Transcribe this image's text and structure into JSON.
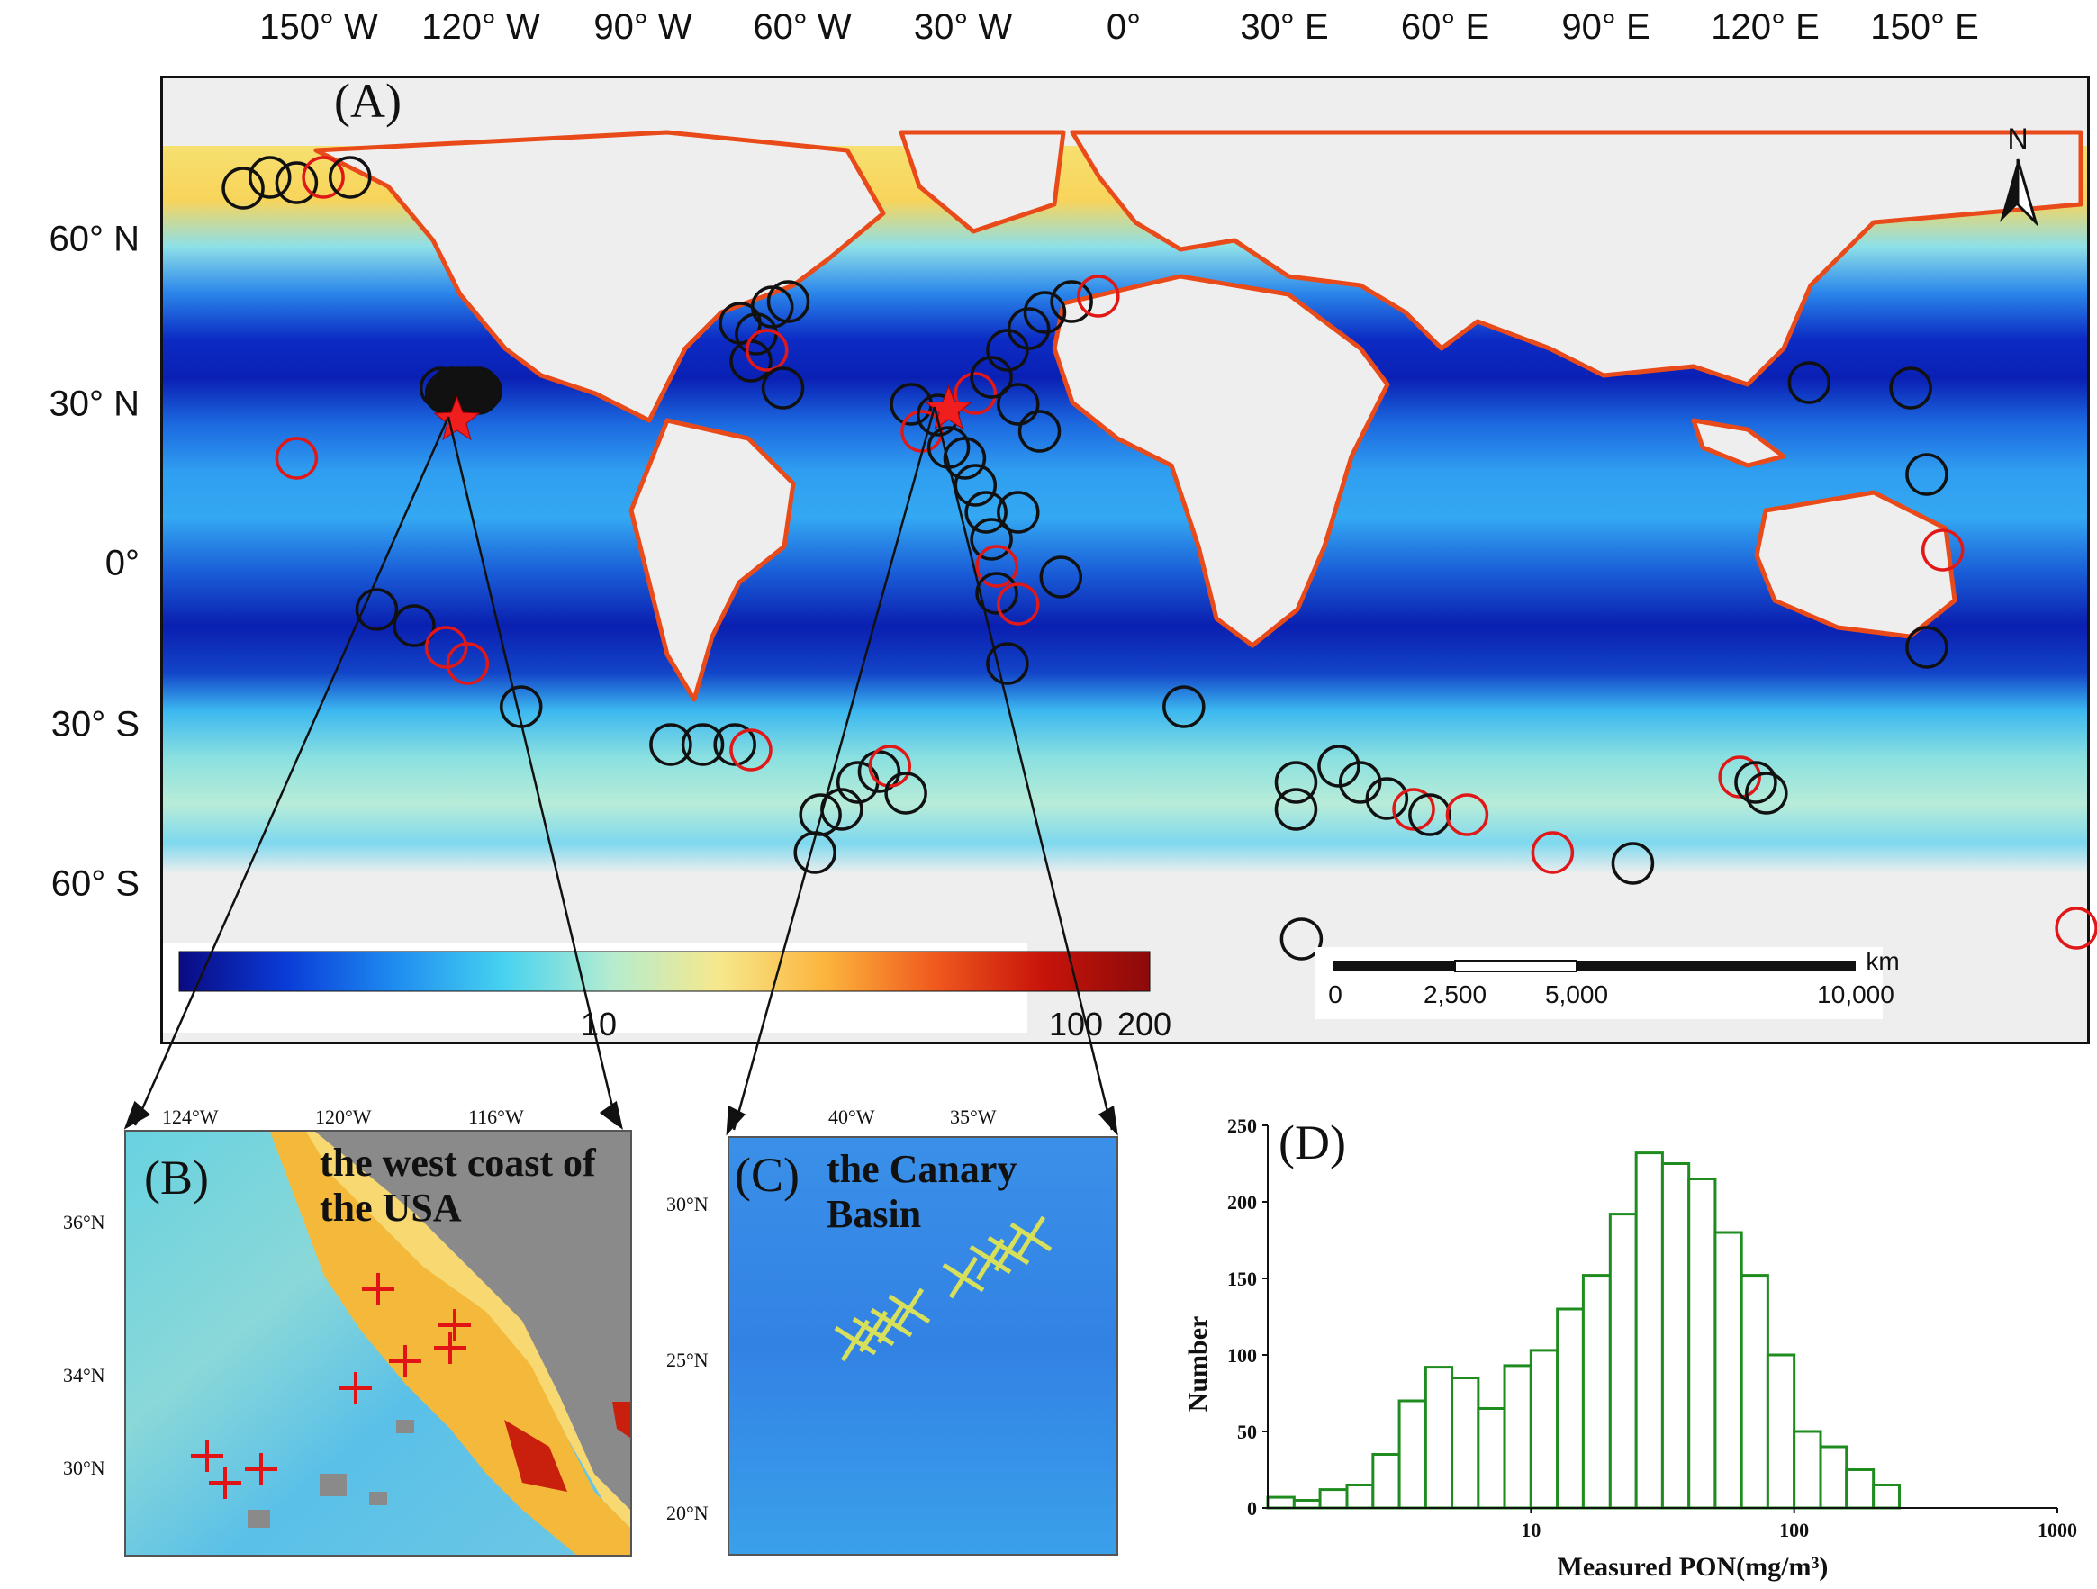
{
  "panel_a": {
    "letter": "(A)",
    "lon_labels": [
      "150° W",
      "120° W",
      "90° W",
      "60° W",
      "30° W",
      "0°",
      "30° E",
      "60° E",
      "90° E",
      "120° E",
      "150° E"
    ],
    "lat_labels": [
      "60° N",
      "30° N",
      "0°",
      "30° S",
      "60° S"
    ],
    "north_label": "N",
    "colorbar": {
      "tick_labels": [
        "10",
        "100",
        "200"
      ],
      "colors": [
        "#0a0a82",
        "#0a3cd8",
        "#1e8cf0",
        "#46d2f0",
        "#b4ecd0",
        "#f6e88c",
        "#fcb43c",
        "#f05a1e",
        "#c8140a",
        "#8c0a0a"
      ]
    },
    "scalebar": {
      "unit": "km",
      "labels": [
        "0",
        "2,500",
        "5,000",
        "10,000"
      ]
    },
    "sites": [
      {
        "lon": -165,
        "lat": 70,
        "c": "black"
      },
      {
        "lon": -160,
        "lat": 72,
        "c": "black"
      },
      {
        "lon": -155,
        "lat": 71,
        "c": "black"
      },
      {
        "lon": -150,
        "lat": 72,
        "c": "red"
      },
      {
        "lon": -145,
        "lat": 72,
        "c": "black"
      },
      {
        "lon": -128,
        "lat": 33,
        "c": "black"
      },
      {
        "lon": -126,
        "lat": 33,
        "c": "black"
      },
      {
        "lon": -124,
        "lat": 32,
        "c": "black"
      },
      {
        "lon": -121,
        "lat": 33,
        "c": "black"
      },
      {
        "lon": -155,
        "lat": 20,
        "c": "red"
      },
      {
        "lon": -140,
        "lat": -8,
        "c": "black"
      },
      {
        "lon": -133,
        "lat": -11,
        "c": "black"
      },
      {
        "lon": -127,
        "lat": -15,
        "c": "red"
      },
      {
        "lon": -123,
        "lat": -18,
        "c": "red"
      },
      {
        "lon": -113,
        "lat": -26,
        "c": "black"
      },
      {
        "lon": -85,
        "lat": -33,
        "c": "black"
      },
      {
        "lon": -79,
        "lat": -33,
        "c": "black"
      },
      {
        "lon": -73,
        "lat": -33,
        "c": "black"
      },
      {
        "lon": -70,
        "lat": -34,
        "c": "red"
      },
      {
        "lon": -72,
        "lat": 45,
        "c": "black"
      },
      {
        "lon": -69,
        "lat": 43,
        "c": "black"
      },
      {
        "lon": -66,
        "lat": 48,
        "c": "black"
      },
      {
        "lon": -63,
        "lat": 49,
        "c": "black"
      },
      {
        "lon": -70,
        "lat": 38,
        "c": "black"
      },
      {
        "lon": -67,
        "lat": 40,
        "c": "red"
      },
      {
        "lon": -64,
        "lat": 33,
        "c": "black"
      },
      {
        "lon": -50,
        "lat": -40,
        "c": "black"
      },
      {
        "lon": -46,
        "lat": -38,
        "c": "black"
      },
      {
        "lon": -53,
        "lat": -45,
        "c": "black"
      },
      {
        "lon": -57,
        "lat": -46,
        "c": "black"
      },
      {
        "lon": -44,
        "lat": -37,
        "c": "red"
      },
      {
        "lon": -41,
        "lat": -42,
        "c": "black"
      },
      {
        "lon": -58,
        "lat": -53,
        "c": "black"
      },
      {
        "lon": -40,
        "lat": 30,
        "c": "black"
      },
      {
        "lon": -38,
        "lat": 25,
        "c": "red"
      },
      {
        "lon": -35,
        "lat": 28,
        "c": "black"
      },
      {
        "lon": -33,
        "lat": 22,
        "c": "black"
      },
      {
        "lon": -30,
        "lat": 20,
        "c": "black"
      },
      {
        "lon": -28,
        "lat": 32,
        "c": "red"
      },
      {
        "lon": -25,
        "lat": 35,
        "c": "black"
      },
      {
        "lon": -22,
        "lat": 40,
        "c": "black"
      },
      {
        "lon": -18,
        "lat": 44,
        "c": "black"
      },
      {
        "lon": -15,
        "lat": 47,
        "c": "black"
      },
      {
        "lon": -10,
        "lat": 49,
        "c": "black"
      },
      {
        "lon": -5,
        "lat": 50,
        "c": "red"
      },
      {
        "lon": -20,
        "lat": 30,
        "c": "black"
      },
      {
        "lon": -16,
        "lat": 25,
        "c": "black"
      },
      {
        "lon": -28,
        "lat": 15,
        "c": "black"
      },
      {
        "lon": -26,
        "lat": 10,
        "c": "black"
      },
      {
        "lon": -25,
        "lat": 5,
        "c": "black"
      },
      {
        "lon": -24,
        "lat": 0,
        "c": "red"
      },
      {
        "lon": -24,
        "lat": -5,
        "c": "black"
      },
      {
        "lon": -20,
        "lat": -7,
        "c": "red"
      },
      {
        "lon": -12,
        "lat": -2,
        "c": "black"
      },
      {
        "lon": -20,
        "lat": 10,
        "c": "black"
      },
      {
        "lon": -22,
        "lat": -18,
        "c": "black"
      },
      {
        "lon": 11,
        "lat": -26,
        "c": "black"
      },
      {
        "lon": 32,
        "lat": -40,
        "c": "black"
      },
      {
        "lon": 32,
        "lat": -45,
        "c": "black"
      },
      {
        "lon": 40,
        "lat": -37,
        "c": "black"
      },
      {
        "lon": 44,
        "lat": -40,
        "c": "black"
      },
      {
        "lon": 49,
        "lat": -43,
        "c": "black"
      },
      {
        "lon": 54,
        "lat": -45,
        "c": "red"
      },
      {
        "lon": 57,
        "lat": -46,
        "c": "black"
      },
      {
        "lon": 64,
        "lat": -46,
        "c": "red"
      },
      {
        "lon": 80,
        "lat": -53,
        "c": "red"
      },
      {
        "lon": 95,
        "lat": -55,
        "c": "black"
      },
      {
        "lon": 33,
        "lat": -69,
        "c": "black"
      },
      {
        "lon": 115,
        "lat": -39,
        "c": "red"
      },
      {
        "lon": 118,
        "lat": -40,
        "c": "black"
      },
      {
        "lon": 120,
        "lat": -42,
        "c": "black"
      },
      {
        "lon": 128,
        "lat": 34,
        "c": "black"
      },
      {
        "lon": 147,
        "lat": 33,
        "c": "black"
      },
      {
        "lon": 150,
        "lat": 17,
        "c": "black"
      },
      {
        "lon": 153,
        "lat": 3,
        "c": "red"
      },
      {
        "lon": 150,
        "lat": -15,
        "c": "black"
      },
      {
        "lon": 178,
        "lat": -67,
        "c": "red"
      }
    ],
    "stars": [
      {
        "lon": -125,
        "lat": 27
      },
      {
        "lon": -33,
        "lat": 29
      }
    ]
  },
  "panel_b": {
    "letter": "(B)",
    "title": "the west coast of the USA",
    "lon_labels": [
      "124°W",
      "120°W",
      "116°W"
    ],
    "lat_labels": [
      "36°N",
      "34°N",
      "30°N"
    ]
  },
  "panel_c": {
    "letter": "(C)",
    "title": "the Canary Basin",
    "lon_labels": [
      "40°W",
      "35°W"
    ],
    "lat_labels": [
      "30°N",
      "25°N",
      "20°N"
    ]
  },
  "chart_data": {
    "type": "bar",
    "letter": "(D)",
    "xlabel": "Measured PON(mg/m³)",
    "ylabel": "Number",
    "x_scale": "log",
    "xlim": [
      1,
      1000
    ],
    "ylim": [
      0,
      250
    ],
    "x_ticks": [
      "10",
      "100",
      "1000"
    ],
    "y_ticks": [
      "0",
      "50",
      "100",
      "150",
      "200",
      "250"
    ],
    "bin_edges": [
      1.0,
      1.26,
      1.58,
      2.0,
      2.51,
      3.16,
      3.98,
      5.01,
      6.31,
      7.94,
      10.0,
      12.6,
      15.8,
      20.0,
      25.1,
      31.6,
      39.8,
      50.1,
      63.1,
      79.4,
      100,
      126,
      158,
      200,
      251
    ],
    "values": [
      7,
      5,
      12,
      15,
      35,
      70,
      92,
      85,
      65,
      93,
      103,
      130,
      152,
      192,
      232,
      225,
      215,
      180,
      152,
      100,
      50,
      40,
      25,
      15
    ]
  }
}
